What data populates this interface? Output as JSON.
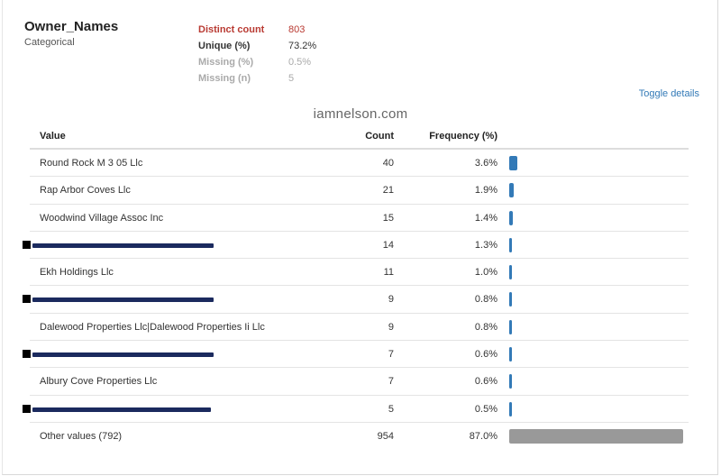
{
  "variable": {
    "name": "Owner_Names",
    "type": "Categorical"
  },
  "stats": [
    {
      "label": "Distinct count",
      "value": "803",
      "style": "alert"
    },
    {
      "label": "Unique (%)",
      "value": "73.2%",
      "style": "normal"
    },
    {
      "label": "Missing (%)",
      "value": "0.5%",
      "style": "muted"
    },
    {
      "label": "Missing (n)",
      "value": "5",
      "style": "muted"
    }
  ],
  "toggle_label": "Toggle details",
  "watermark": "iamnelson.com",
  "table": {
    "headers": {
      "value": "Value",
      "count": "Count",
      "frequency": "Frequency (%)"
    },
    "rows": [
      {
        "value": "Round Rock M 3 05 Llc",
        "count": "40",
        "frequency": "3.6%",
        "fraction": 0.036,
        "redacted": false
      },
      {
        "value": "Rap Arbor Coves Llc",
        "count": "21",
        "frequency": "1.9%",
        "fraction": 0.019,
        "redacted": false
      },
      {
        "value": "Woodwind Village Assoc Inc",
        "count": "15",
        "frequency": "1.4%",
        "fraction": 0.014,
        "redacted": false
      },
      {
        "value": "",
        "count": "14",
        "frequency": "1.3%",
        "fraction": 0.013,
        "redacted": true
      },
      {
        "value": "Ekh Holdings Llc",
        "count": "11",
        "frequency": "1.0%",
        "fraction": 0.01,
        "redacted": false
      },
      {
        "value": "",
        "count": "9",
        "frequency": "0.8%",
        "fraction": 0.008,
        "redacted": true
      },
      {
        "value": "Dalewood Properties Llc|Dalewood Properties Ii Llc",
        "count": "9",
        "frequency": "0.8%",
        "fraction": 0.008,
        "redacted": false
      },
      {
        "value": "",
        "count": "7",
        "frequency": "0.6%",
        "fraction": 0.006,
        "redacted": true
      },
      {
        "value": "Albury Cove Properties Llc",
        "count": "7",
        "frequency": "0.6%",
        "fraction": 0.006,
        "redacted": false
      },
      {
        "value": "",
        "count": "5",
        "frequency": "0.5%",
        "fraction": 0.005,
        "redacted": true
      },
      {
        "value": "Other values (792)",
        "count": "954",
        "frequency": "87.0%",
        "fraction": 0.87,
        "redacted": false,
        "other": true
      }
    ]
  },
  "colors": {
    "bar": "#337ab7",
    "other_bar": "#999999",
    "alert": "#b93a32",
    "link": "#337ab7",
    "redaction": "#1b2a5e"
  }
}
